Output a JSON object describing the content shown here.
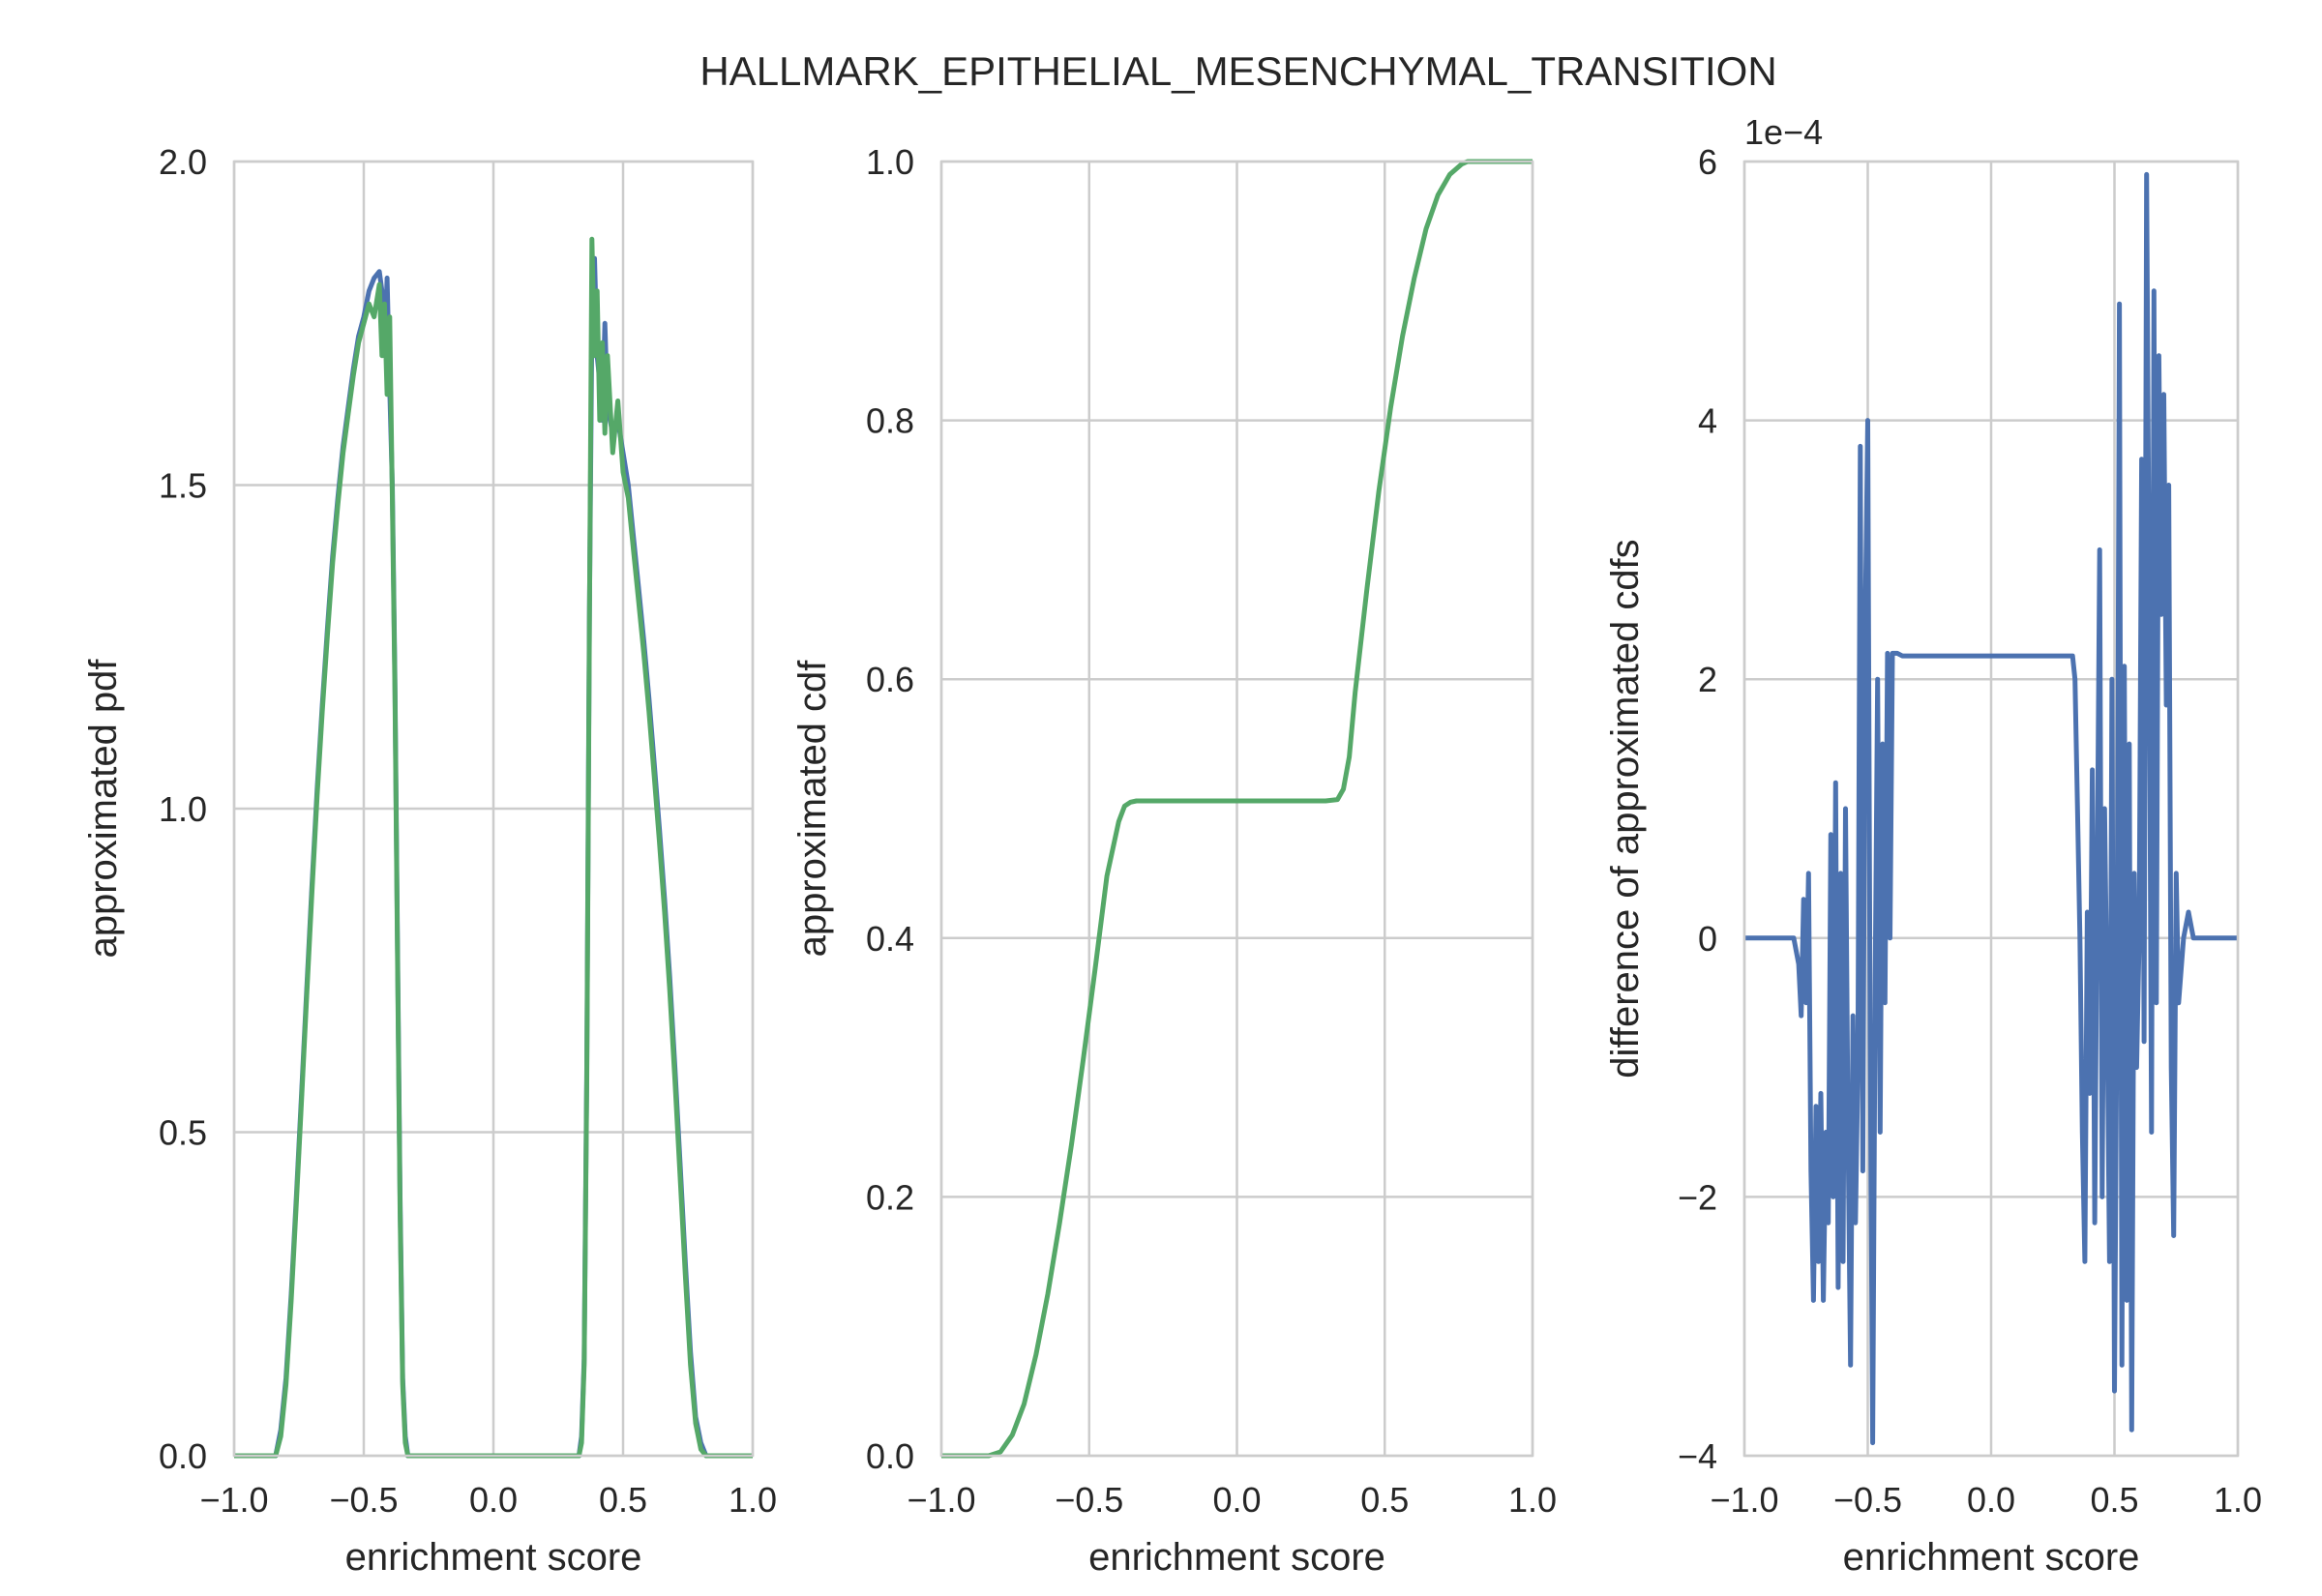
{
  "title": "HALLMARK_EPITHELIAL_MESENCHYMAL_TRANSITION",
  "colors": {
    "blue": "#4c72b0",
    "green": "#55a868",
    "grid": "#cccccc",
    "text": "#262626"
  },
  "chart_data": [
    {
      "type": "line",
      "xlabel": "enrichment score",
      "ylabel": "approximated pdf",
      "xlim": [
        -1.0,
        1.0
      ],
      "ylim": [
        0.0,
        2.0
      ],
      "xticks": [
        -1.0,
        -0.5,
        0.0,
        0.5,
        1.0
      ],
      "xtick_labels": [
        "−1.0",
        "−0.5",
        "0.0",
        "0.5",
        "1.0"
      ],
      "yticks": [
        0.0,
        0.5,
        1.0,
        1.5,
        2.0
      ],
      "ytick_labels": [
        "0.0",
        "0.5",
        "1.0",
        "1.5",
        "2.0"
      ],
      "grid": true,
      "series": [
        {
          "color": "#4c72b0",
          "x": [
            -1.0,
            -0.84,
            -0.82,
            -0.8,
            -0.78,
            -0.76,
            -0.74,
            -0.72,
            -0.7,
            -0.68,
            -0.66,
            -0.64,
            -0.62,
            -0.6,
            -0.58,
            -0.56,
            -0.54,
            -0.52,
            -0.5,
            -0.48,
            -0.46,
            -0.44,
            -0.43,
            -0.42,
            -0.41,
            -0.4,
            -0.39,
            -0.38,
            -0.37,
            -0.36,
            -0.35,
            -0.34,
            -0.33,
            -0.3,
            0.0,
            0.33,
            0.34,
            0.35,
            0.36,
            0.37,
            0.38,
            0.39,
            0.4,
            0.41,
            0.42,
            0.43,
            0.44,
            0.46,
            0.48,
            0.5,
            0.52,
            0.54,
            0.56,
            0.58,
            0.6,
            0.62,
            0.64,
            0.66,
            0.68,
            0.7,
            0.72,
            0.74,
            0.76,
            0.78,
            0.8,
            0.82,
            0.84,
            1.0
          ],
          "y": [
            0.0,
            0.0,
            0.04,
            0.12,
            0.25,
            0.4,
            0.56,
            0.72,
            0.88,
            1.03,
            1.16,
            1.28,
            1.39,
            1.48,
            1.56,
            1.62,
            1.68,
            1.73,
            1.76,
            1.8,
            1.82,
            1.83,
            1.8,
            1.7,
            1.82,
            1.65,
            1.5,
            1.2,
            0.8,
            0.4,
            0.12,
            0.03,
            0.0,
            0.0,
            0.0,
            0.0,
            0.03,
            0.15,
            0.6,
            1.3,
            1.75,
            1.85,
            1.7,
            1.66,
            1.6,
            1.75,
            1.62,
            1.58,
            1.6,
            1.55,
            1.5,
            1.42,
            1.34,
            1.26,
            1.17,
            1.07,
            0.97,
            0.86,
            0.74,
            0.6,
            0.45,
            0.3,
            0.16,
            0.06,
            0.02,
            0.0,
            0.0,
            0.0
          ]
        },
        {
          "color": "#55a868",
          "x": [
            -1.0,
            -0.84,
            -0.82,
            -0.8,
            -0.78,
            -0.76,
            -0.74,
            -0.72,
            -0.7,
            -0.68,
            -0.66,
            -0.64,
            -0.62,
            -0.6,
            -0.58,
            -0.56,
            -0.54,
            -0.52,
            -0.5,
            -0.48,
            -0.46,
            -0.44,
            -0.43,
            -0.42,
            -0.41,
            -0.4,
            -0.39,
            -0.38,
            -0.37,
            -0.36,
            -0.35,
            -0.34,
            -0.33,
            -0.3,
            0.0,
            0.33,
            0.34,
            0.35,
            0.36,
            0.37,
            0.38,
            0.39,
            0.4,
            0.41,
            0.42,
            0.43,
            0.44,
            0.46,
            0.48,
            0.5,
            0.52,
            0.54,
            0.56,
            0.58,
            0.6,
            0.62,
            0.64,
            0.66,
            0.68,
            0.7,
            0.72,
            0.74,
            0.76,
            0.78,
            0.8,
            0.82,
            0.84,
            1.0
          ],
          "y": [
            0.0,
            0.0,
            0.03,
            0.11,
            0.24,
            0.39,
            0.55,
            0.71,
            0.87,
            1.02,
            1.15,
            1.27,
            1.38,
            1.47,
            1.55,
            1.61,
            1.67,
            1.72,
            1.75,
            1.78,
            1.76,
            1.81,
            1.7,
            1.78,
            1.64,
            1.76,
            1.48,
            1.18,
            0.78,
            0.38,
            0.11,
            0.02,
            0.0,
            0.0,
            0.0,
            0.0,
            0.02,
            0.14,
            0.58,
            1.28,
            1.88,
            1.7,
            1.8,
            1.6,
            1.72,
            1.58,
            1.7,
            1.55,
            1.63,
            1.52,
            1.48,
            1.4,
            1.32,
            1.24,
            1.15,
            1.05,
            0.95,
            0.84,
            0.72,
            0.58,
            0.43,
            0.28,
            0.14,
            0.05,
            0.01,
            0.0,
            0.0,
            0.0
          ]
        }
      ]
    },
    {
      "type": "line",
      "xlabel": "enrichment score",
      "ylabel": "approximated cdf",
      "xlim": [
        -1.0,
        1.0
      ],
      "ylim": [
        0.0,
        1.0
      ],
      "xticks": [
        -1.0,
        -0.5,
        0.0,
        0.5,
        1.0
      ],
      "xtick_labels": [
        "−1.0",
        "−0.5",
        "0.0",
        "0.5",
        "1.0"
      ],
      "yticks": [
        0.0,
        0.2,
        0.4,
        0.6,
        0.8,
        1.0
      ],
      "ytick_labels": [
        "0.0",
        "0.2",
        "0.4",
        "0.6",
        "0.8",
        "1.0"
      ],
      "grid": true,
      "series": [
        {
          "color": "#55a868",
          "x": [
            -1.0,
            -0.84,
            -0.8,
            -0.76,
            -0.72,
            -0.68,
            -0.64,
            -0.6,
            -0.56,
            -0.52,
            -0.48,
            -0.44,
            -0.4,
            -0.38,
            -0.36,
            -0.34,
            -0.32,
            -0.3,
            0.0,
            0.3,
            0.34,
            0.36,
            0.38,
            0.4,
            0.44,
            0.48,
            0.52,
            0.56,
            0.6,
            0.64,
            0.68,
            0.72,
            0.76,
            0.78,
            0.8,
            0.84,
            1.0
          ],
          "y": [
            0.0,
            0.0,
            0.003,
            0.016,
            0.04,
            0.078,
            0.125,
            0.18,
            0.24,
            0.306,
            0.376,
            0.448,
            0.49,
            0.502,
            0.505,
            0.506,
            0.506,
            0.506,
            0.506,
            0.506,
            0.507,
            0.515,
            0.54,
            0.59,
            0.67,
            0.745,
            0.81,
            0.865,
            0.91,
            0.948,
            0.974,
            0.99,
            0.998,
            1.0,
            1.0,
            1.0,
            1.0
          ]
        }
      ]
    },
    {
      "type": "line",
      "xlabel": "enrichment score",
      "ylabel": "difference of approximated cdfs",
      "y_offset_label": "1e−4",
      "xlim": [
        -1.0,
        1.0
      ],
      "ylim": [
        -4,
        6
      ],
      "xticks": [
        -1.0,
        -0.5,
        0.0,
        0.5,
        1.0
      ],
      "xtick_labels": [
        "−1.0",
        "−0.5",
        "0.0",
        "0.5",
        "1.0"
      ],
      "yticks": [
        -4,
        -2,
        0,
        2,
        4,
        6
      ],
      "ytick_labels": [
        "−4",
        "−2",
        "0",
        "2",
        "4",
        "6"
      ],
      "grid": true,
      "series": [
        {
          "color": "#4c72b0",
          "x": [
            -1.0,
            -0.8,
            -0.78,
            -0.77,
            -0.76,
            -0.75,
            -0.74,
            -0.73,
            -0.72,
            -0.71,
            -0.7,
            -0.69,
            -0.68,
            -0.67,
            -0.66,
            -0.65,
            -0.64,
            -0.63,
            -0.62,
            -0.61,
            -0.6,
            -0.59,
            -0.58,
            -0.57,
            -0.56,
            -0.55,
            -0.54,
            -0.53,
            -0.52,
            -0.51,
            -0.5,
            -0.49,
            -0.48,
            -0.47,
            -0.46,
            -0.45,
            -0.44,
            -0.43,
            -0.42,
            -0.41,
            -0.4,
            -0.38,
            -0.36,
            -0.33,
            0.0,
            0.3,
            0.32,
            0.33,
            0.34,
            0.35,
            0.36,
            0.37,
            0.38,
            0.39,
            0.4,
            0.41,
            0.42,
            0.43,
            0.44,
            0.45,
            0.46,
            0.47,
            0.48,
            0.49,
            0.5,
            0.51,
            0.52,
            0.53,
            0.54,
            0.55,
            0.56,
            0.57,
            0.58,
            0.59,
            0.6,
            0.61,
            0.62,
            0.63,
            0.64,
            0.65,
            0.66,
            0.67,
            0.68,
            0.69,
            0.7,
            0.71,
            0.72,
            0.73,
            0.74,
            0.75,
            0.76,
            0.78,
            0.8,
            0.82,
            1.0
          ],
          "y": [
            0.0,
            0.0,
            -0.2,
            -0.6,
            0.3,
            -0.5,
            0.5,
            -1.8,
            -2.8,
            -1.3,
            -2.5,
            -1.2,
            -2.8,
            -1.5,
            -2.2,
            0.8,
            -2.0,
            1.2,
            -2.7,
            0.5,
            -2.5,
            1.0,
            -1.5,
            -3.3,
            -0.6,
            -2.2,
            -1.0,
            3.8,
            -1.8,
            2.5,
            4.0,
            -0.8,
            -3.9,
            -0.3,
            2.0,
            -1.5,
            1.5,
            -0.5,
            2.2,
            0.0,
            2.2,
            2.2,
            2.18,
            2.18,
            2.18,
            2.18,
            2.18,
            2.18,
            2.0,
            1.0,
            0.0,
            -1.5,
            -2.5,
            0.2,
            -1.2,
            1.3,
            -2.2,
            0.5,
            3.0,
            -2.0,
            1.0,
            -0.5,
            -2.5,
            2.0,
            -3.5,
            -0.5,
            4.9,
            -3.3,
            2.1,
            -2.8,
            1.5,
            -3.8,
            0.5,
            -1.0,
            0.0,
            3.7,
            -0.8,
            5.9,
            2.8,
            -1.5,
            5.0,
            -0.5,
            4.5,
            2.5,
            4.2,
            1.8,
            3.5,
            -1.0,
            -2.3,
            0.5,
            -0.5,
            0.0,
            0.2,
            0.0,
            0.0
          ]
        }
      ]
    }
  ]
}
